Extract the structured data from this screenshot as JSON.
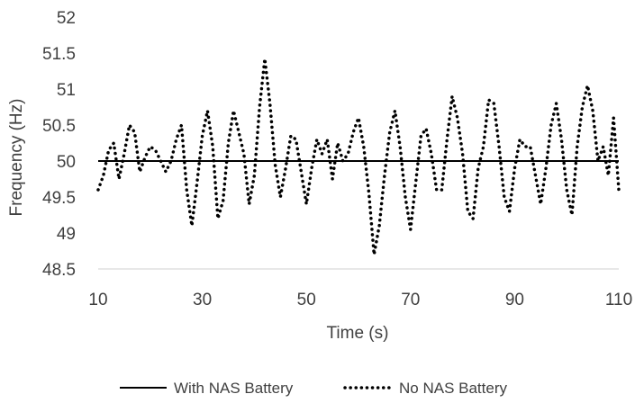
{
  "chart_data": {
    "type": "line",
    "title": "",
    "xlabel": "Time (s)",
    "ylabel": "Frequency (Hz)",
    "xlim": [
      10,
      110
    ],
    "ylim": [
      48.5,
      52
    ],
    "xticks": [
      10,
      30,
      50,
      70,
      90,
      110
    ],
    "yticks": [
      48.5,
      49,
      49.5,
      50,
      50.5,
      51,
      51.5,
      52
    ],
    "grid": false,
    "legend_position": "bottom",
    "series": [
      {
        "name": "With NAS Battery",
        "style": "solid",
        "color": "#000000",
        "x": [
          10,
          110
        ],
        "y": [
          50.0,
          50.0
        ]
      },
      {
        "name": "No NAS Battery",
        "style": "dotted",
        "color": "#000000",
        "x": [
          10,
          11,
          12,
          13,
          14,
          15,
          16,
          17,
          18,
          19,
          20,
          21,
          22,
          23,
          24,
          25,
          26,
          27,
          28,
          29,
          30,
          31,
          32,
          33,
          34,
          35,
          36,
          37,
          38,
          39,
          40,
          41,
          42,
          43,
          44,
          45,
          46,
          47,
          48,
          49,
          50,
          51,
          52,
          53,
          54,
          55,
          56,
          57,
          58,
          59,
          60,
          61,
          62,
          63,
          64,
          65,
          66,
          67,
          68,
          69,
          70,
          71,
          72,
          73,
          74,
          75,
          76,
          77,
          78,
          79,
          80,
          81,
          82,
          83,
          84,
          85,
          86,
          87,
          88,
          89,
          90,
          91,
          92,
          93,
          94,
          95,
          96,
          97,
          98,
          99,
          100,
          101,
          102,
          103,
          104,
          105,
          106,
          107,
          108,
          109,
          110
        ],
        "y": [
          49.6,
          49.8,
          50.15,
          50.25,
          49.75,
          50.1,
          50.5,
          50.4,
          49.85,
          50.05,
          50.2,
          50.15,
          50.0,
          49.85,
          50.0,
          50.3,
          50.5,
          49.6,
          49.1,
          49.7,
          50.35,
          50.7,
          50.2,
          49.2,
          49.45,
          50.25,
          50.7,
          50.4,
          50.1,
          49.4,
          49.8,
          50.75,
          51.42,
          50.8,
          49.95,
          49.5,
          49.9,
          50.35,
          50.3,
          49.85,
          49.4,
          49.9,
          50.3,
          50.1,
          50.3,
          49.75,
          50.25,
          50.0,
          50.1,
          50.4,
          50.6,
          50.2,
          49.55,
          48.7,
          49.1,
          49.8,
          50.4,
          50.7,
          50.2,
          49.5,
          49.05,
          49.7,
          50.35,
          50.45,
          50.1,
          49.6,
          49.6,
          50.3,
          50.9,
          50.6,
          50.1,
          49.3,
          49.2,
          49.9,
          50.2,
          50.85,
          50.8,
          50.2,
          49.5,
          49.3,
          49.9,
          50.3,
          50.2,
          50.2,
          49.8,
          49.4,
          49.9,
          50.5,
          50.8,
          50.3,
          49.6,
          49.25,
          50.2,
          50.75,
          51.05,
          50.7,
          50.0,
          50.2,
          49.8,
          50.6,
          49.6
        ]
      }
    ]
  }
}
